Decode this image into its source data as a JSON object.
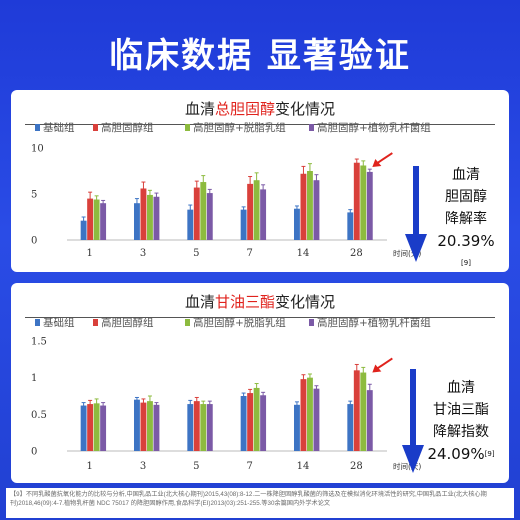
{
  "headline": "临床数据 显著验证",
  "colors": {
    "background": "#2443dc",
    "highlight": "#e0231d",
    "series": [
      "#3d74c4",
      "#d9403b",
      "#8dbb3f",
      "#7b5aa6"
    ],
    "arrow_blue": "#1a3cc8"
  },
  "footnote": "【9】不同乳酸菌抗氧化能力的比较与分析,中国乳品工业(北大核心期刊)2015,43(08):8-12.二一株降胆固醇乳酸菌的筛选及在模拟消化环境活性的研究,中国乳品工业(北大核心期刊)2018,46(09):4-7.植物乳杆菌 NDC 75017 的降胆固醇作用,食品科学(EI)2013(03):251-255.等30余篇国内外学术论文",
  "chart_data": [
    {
      "type": "bar",
      "title_prefix": "血清",
      "title_highlight": "总胆固醇",
      "title_suffix": "变化情况",
      "categories": [
        "1",
        "3",
        "5",
        "7",
        "14",
        "28"
      ],
      "xlabel": "时间(天)",
      "ylim": [
        0,
        10
      ],
      "yticks": [
        "0",
        "5",
        "10"
      ],
      "ytick_values": [
        0,
        5,
        10
      ],
      "legend_position": "top",
      "series": [
        {
          "name": "基础组",
          "values": [
            2.1,
            4.0,
            3.3,
            3.3,
            3.4,
            3.0
          ],
          "errors": [
            0.4,
            0.5,
            0.5,
            0.3,
            0.3,
            0.3
          ]
        },
        {
          "name": "高胆固醇组",
          "values": [
            4.5,
            5.6,
            5.7,
            6.1,
            7.2,
            8.4
          ],
          "errors": [
            0.7,
            0.7,
            0.7,
            0.8,
            0.8,
            0.4
          ]
        },
        {
          "name": "高胆固醇+脱脂乳组",
          "values": [
            4.4,
            4.9,
            6.3,
            6.5,
            7.5,
            8.1
          ],
          "errors": [
            0.4,
            0.5,
            0.7,
            0.8,
            0.8,
            0.5
          ]
        },
        {
          "name": "高胆固醇+植物乳杆菌组",
          "values": [
            4.0,
            4.7,
            5.1,
            5.5,
            6.5,
            7.4
          ],
          "errors": [
            0.3,
            0.4,
            0.4,
            0.5,
            0.6,
            0.3
          ]
        }
      ],
      "side_label": [
        "血清",
        "胆固醇",
        "降解率"
      ],
      "side_value": "20.39%",
      "side_ref": "[9]"
    },
    {
      "type": "bar",
      "title_prefix": "血清",
      "title_highlight": "甘油三酯",
      "title_suffix": "变化情况",
      "categories": [
        "1",
        "3",
        "5",
        "7",
        "14",
        "28"
      ],
      "xlabel": "时间(天)",
      "ylim": [
        0,
        1.5
      ],
      "yticks": [
        "0",
        "0.5",
        "1",
        "1.5"
      ],
      "ytick_values": [
        0,
        0.5,
        1,
        1.5
      ],
      "legend_position": "top",
      "series": [
        {
          "name": "基础组",
          "values": [
            0.62,
            0.7,
            0.64,
            0.75,
            0.63,
            0.64
          ],
          "errors": [
            0.04,
            0.03,
            0.05,
            0.04,
            0.04,
            0.04
          ]
        },
        {
          "name": "高胆固醇组",
          "values": [
            0.64,
            0.66,
            0.68,
            0.79,
            0.98,
            1.1
          ],
          "errors": [
            0.05,
            0.05,
            0.05,
            0.05,
            0.06,
            0.08
          ]
        },
        {
          "name": "高胆固醇+脱脂乳组",
          "values": [
            0.65,
            0.68,
            0.64,
            0.86,
            1.0,
            1.07
          ],
          "errors": [
            0.06,
            0.07,
            0.04,
            0.06,
            0.05,
            0.07
          ]
        },
        {
          "name": "高胆固醇+植物乳杆菌组",
          "values": [
            0.62,
            0.63,
            0.64,
            0.76,
            0.85,
            0.83
          ],
          "errors": [
            0.04,
            0.03,
            0.04,
            0.04,
            0.04,
            0.08
          ]
        }
      ],
      "side_label": [
        "血清",
        "甘油三酯",
        "降解指数"
      ],
      "side_value": "24.09%",
      "side_ref": "[9]"
    }
  ]
}
